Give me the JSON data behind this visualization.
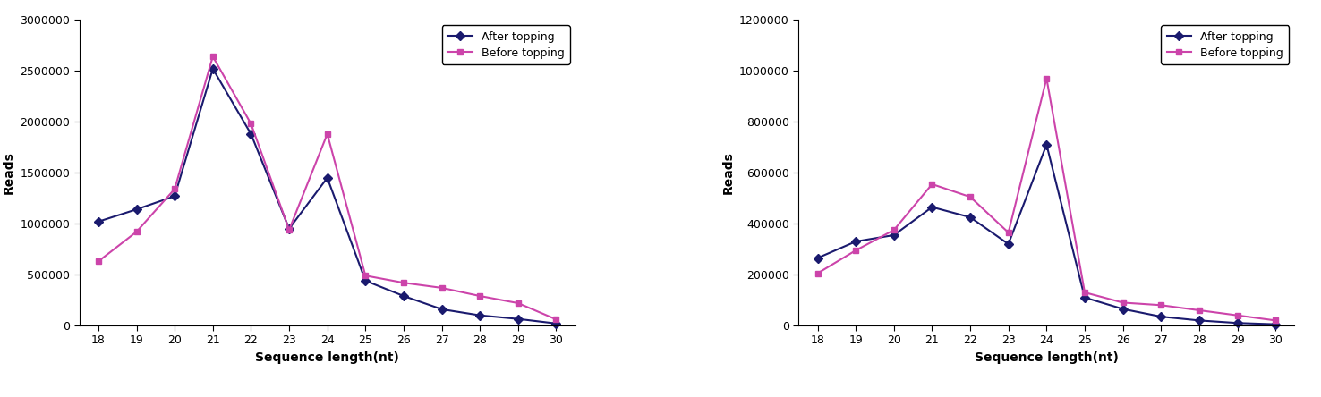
{
  "x": [
    18,
    19,
    20,
    21,
    22,
    23,
    24,
    25,
    26,
    27,
    28,
    29,
    30
  ],
  "left": {
    "after_topping": [
      1020000,
      1140000,
      1270000,
      2520000,
      1880000,
      950000,
      1450000,
      440000,
      290000,
      160000,
      100000,
      65000,
      20000
    ],
    "before_topping": [
      630000,
      920000,
      1340000,
      2640000,
      1980000,
      940000,
      1880000,
      490000,
      420000,
      370000,
      290000,
      220000,
      60000
    ],
    "ylabel": "Reads",
    "xlabel": "Sequence length(nt)",
    "ylim": [
      0,
      3000000
    ],
    "yticks": [
      0,
      500000,
      1000000,
      1500000,
      2000000,
      2500000,
      3000000
    ]
  },
  "right": {
    "after_topping": [
      265000,
      330000,
      355000,
      465000,
      425000,
      320000,
      710000,
      110000,
      65000,
      35000,
      20000,
      10000,
      5000
    ],
    "before_topping": [
      205000,
      295000,
      375000,
      555000,
      505000,
      365000,
      970000,
      130000,
      90000,
      80000,
      60000,
      40000,
      20000
    ],
    "ylabel": "Reads",
    "xlabel": "Sequence length(nt)",
    "ylim": [
      0,
      1200000
    ],
    "yticks": [
      0,
      200000,
      400000,
      600000,
      800000,
      1000000,
      1200000
    ]
  },
  "after_color": "#1a1a6e",
  "before_color": "#cc44aa",
  "after_marker": "D",
  "before_marker": "s",
  "linewidth": 1.5,
  "markersize": 5,
  "legend_after": "After topping",
  "legend_before": "Before topping",
  "tick_fontsize": 9,
  "label_fontsize": 10,
  "figsize": [
    14.76,
    4.44
  ],
  "dpi": 100
}
